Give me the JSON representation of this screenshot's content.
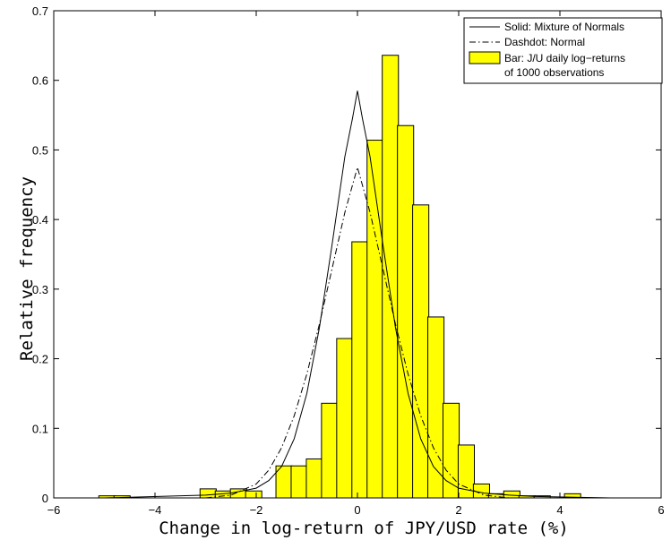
{
  "chart_data": {
    "type": "bar",
    "xlabel": "Change in log-return of JPY/USD rate (%)",
    "ylabel": "Relative frequency",
    "xlim": [
      -6,
      6
    ],
    "ylim": [
      0,
      0.7
    ],
    "xticks": [
      -6,
      -4,
      -2,
      0,
      2,
      4,
      6
    ],
    "xtick_labels": [
      "−6",
      "−4",
      "−2",
      "0",
      "2",
      "4",
      "6"
    ],
    "yticks": [
      0,
      0.1,
      0.2,
      0.3,
      0.4,
      0.5,
      0.6,
      0.7
    ],
    "ytick_labels": [
      "0",
      "0.1",
      "0.2",
      "0.3",
      "0.4",
      "0.5",
      "0.6",
      "0.7"
    ],
    "grid": false,
    "legend_position": "top-right",
    "legend": [
      {
        "label": "Solid: Mixture of Normals",
        "style": "solid-line"
      },
      {
        "label": "Dashdot: Normal",
        "style": "dashdot-line"
      },
      {
        "label": "Bar: J/U daily log−returns",
        "label2": "of 1000 observations",
        "style": "yellow-bar"
      }
    ],
    "bar_color": "#ffff00",
    "bar_edge_color": "#000000",
    "bar_width": 0.32,
    "bars": [
      {
        "x": -4.95,
        "y": 0.003
      },
      {
        "x": -4.65,
        "y": 0.003
      },
      {
        "x": -2.95,
        "y": 0.013
      },
      {
        "x": -2.65,
        "y": 0.01
      },
      {
        "x": -2.35,
        "y": 0.013
      },
      {
        "x": -2.05,
        "y": 0.01
      },
      {
        "x": -1.45,
        "y": 0.046
      },
      {
        "x": -1.15,
        "y": 0.046
      },
      {
        "x": -0.85,
        "y": 0.056
      },
      {
        "x": -0.55,
        "y": 0.136
      },
      {
        "x": -0.25,
        "y": 0.229
      },
      {
        "x": 0.05,
        "y": 0.368
      },
      {
        "x": 0.35,
        "y": 0.514
      },
      {
        "x": 0.65,
        "y": 0.636
      },
      {
        "x": 0.95,
        "y": 0.535
      },
      {
        "x": 1.25,
        "y": 0.421
      },
      {
        "x": 1.55,
        "y": 0.26
      },
      {
        "x": 1.85,
        "y": 0.136
      },
      {
        "x": 2.15,
        "y": 0.076
      },
      {
        "x": 2.45,
        "y": 0.02
      },
      {
        "x": 2.75,
        "y": 0.006
      },
      {
        "x": 3.05,
        "y": 0.01
      },
      {
        "x": 3.35,
        "y": 0.003
      },
      {
        "x": 3.65,
        "y": 0.003
      },
      {
        "x": 4.25,
        "y": 0.006
      }
    ],
    "series": [
      {
        "style": "solid",
        "x": [
          -5.0,
          -3.0,
          -2.5,
          -2.0,
          -1.75,
          -1.5,
          -1.25,
          -1.0,
          -0.75,
          -0.5,
          -0.25,
          -0.1,
          0.0,
          0.1,
          0.25,
          0.5,
          0.75,
          1.0,
          1.25,
          1.5,
          1.75,
          2.0,
          2.5,
          3.0,
          3.5,
          5.0
        ],
        "y": [
          0.0,
          0.004,
          0.007,
          0.014,
          0.025,
          0.045,
          0.085,
          0.15,
          0.245,
          0.365,
          0.49,
          0.545,
          0.585,
          0.545,
          0.49,
          0.365,
          0.245,
          0.15,
          0.085,
          0.045,
          0.025,
          0.014,
          0.007,
          0.004,
          0.002,
          0.0
        ]
      },
      {
        "style": "dashdot",
        "x": [
          -3.0,
          -2.5,
          -2.0,
          -1.75,
          -1.5,
          -1.25,
          -1.0,
          -0.75,
          -0.5,
          -0.25,
          0.0,
          0.25,
          0.5,
          0.75,
          1.0,
          1.25,
          1.5,
          1.75,
          2.0,
          2.5,
          3.0
        ],
        "y": [
          0.0,
          0.004,
          0.02,
          0.04,
          0.072,
          0.118,
          0.178,
          0.25,
          0.33,
          0.41,
          0.475,
          0.41,
          0.33,
          0.25,
          0.178,
          0.118,
          0.072,
          0.04,
          0.02,
          0.004,
          0.0
        ]
      }
    ]
  }
}
